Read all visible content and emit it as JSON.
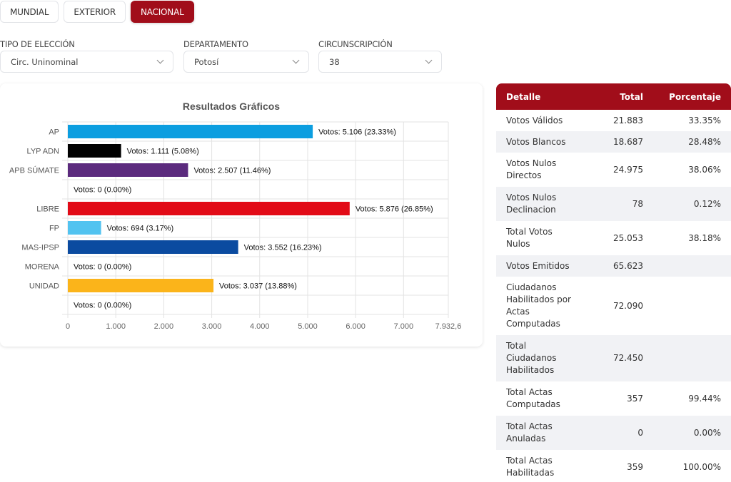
{
  "tabs": [
    {
      "label": "MUNDIAL",
      "active": false
    },
    {
      "label": "EXTERIOR",
      "active": false
    },
    {
      "label": "NACIONAL",
      "active": true
    }
  ],
  "filters": {
    "tipo_eleccion": {
      "label": "TIPO DE ELECCIÓN",
      "value": "Circ. Uninominal"
    },
    "departamento": {
      "label": "DEPARTAMENTO",
      "value": "Potosí"
    },
    "circunscripcion": {
      "label": "CIRCUNSCRIPCIÓN",
      "value": "38"
    }
  },
  "colors": {
    "brand": "#a10d1a"
  },
  "chart_data": {
    "type": "bar",
    "orientation": "horizontal",
    "title": "Resultados Gráficos",
    "xlabel": "",
    "ylabel": "",
    "xlim": [
      0,
      7932.6
    ],
    "grid": true,
    "x_ticks": [
      "0",
      "1.000",
      "2.000",
      "3.000",
      "4.000",
      "5.000",
      "6.000",
      "7.000",
      "7.932,6"
    ],
    "x_tick_values": [
      0,
      1000,
      2000,
      3000,
      4000,
      5000,
      6000,
      7000,
      7932.6
    ],
    "categories": [
      "AP",
      "LYP ADN",
      "APB SÚMATE",
      "",
      "LIBRE",
      "FP",
      "MAS-IPSP",
      "MORENA",
      "UNIDAD",
      ""
    ],
    "values": [
      5106,
      1111,
      2507,
      0,
      5876,
      694,
      3552,
      0,
      3037,
      0
    ],
    "colors": [
      "#0c9ee0",
      "#000000",
      "#5b2a7d",
      "#cccccc",
      "#e20b17",
      "#52c3f0",
      "#0b4ba0",
      "#cccccc",
      "#fbb41a",
      "#cccccc"
    ],
    "data_labels": [
      "Votos: 5.106 (23.33%)",
      "Votos: 1.111 (5.08%)",
      "Votos: 2.507 (11.46%)",
      "Votos: 0 (0.00%)",
      "Votos: 5.876 (26.85%)",
      "Votos: 694 (3.17%)",
      "Votos: 3.552 (16.23%)",
      "Votos: 0 (0.00%)",
      "Votos: 3.037 (13.88%)",
      "Votos: 0 (0.00%)"
    ]
  },
  "summary_table": {
    "headers": [
      "Detalle",
      "Total",
      "Porcentaje"
    ],
    "rows": [
      [
        "Votos Válidos",
        "21.883",
        "33.35%"
      ],
      [
        "Votos Blancos",
        "18.687",
        "28.48%"
      ],
      [
        "Votos Nulos Directos",
        "24.975",
        "38.06%"
      ],
      [
        "Votos Nulos Declinacion",
        "78",
        "0.12%"
      ],
      [
        "Total Votos Nulos",
        "25.053",
        "38.18%"
      ],
      [
        "Votos Emitidos",
        "65.623",
        ""
      ],
      [
        "Ciudadanos Habilitados por Actas Computadas",
        "72.090",
        ""
      ],
      [
        "Total Ciudadanos Habilitados",
        "72.450",
        ""
      ],
      [
        "Total Actas Computadas",
        "357",
        "99.44%"
      ],
      [
        "Total Actas Anuladas",
        "0",
        "0.00%"
      ],
      [
        "Total Actas Habilitadas",
        "359",
        "100.00%"
      ]
    ]
  }
}
